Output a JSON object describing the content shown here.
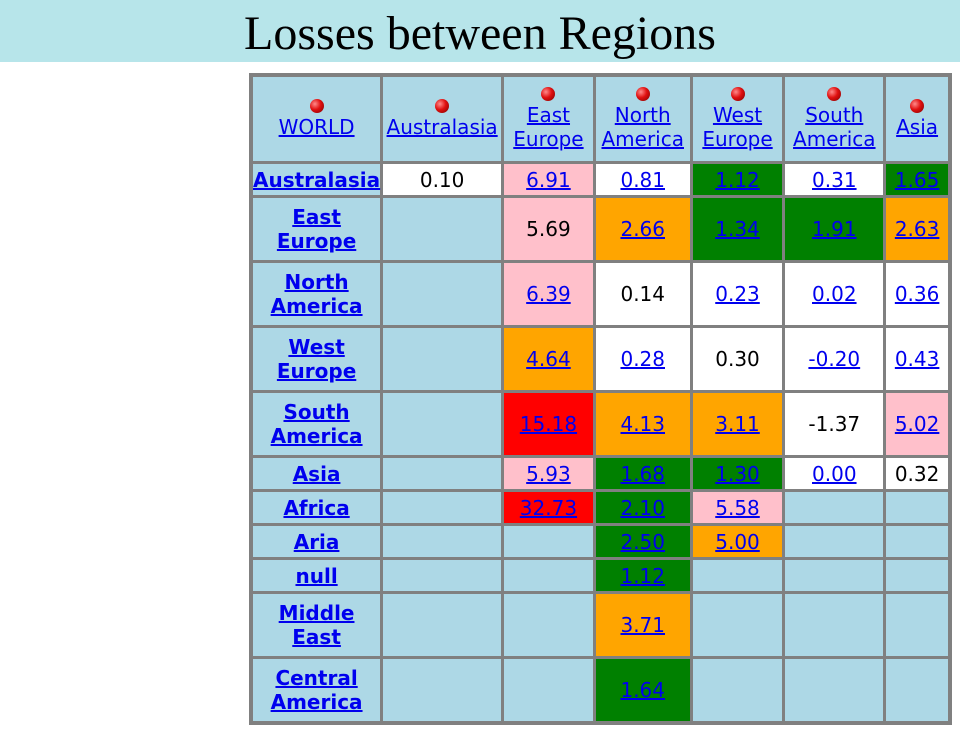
{
  "slide": {
    "title": "Losses between Regions"
  },
  "headers": [
    "WORLD",
    "Australasia",
    "East Europe",
    "North America",
    "West Europe",
    "South America",
    "Asia"
  ],
  "header_lines": [
    [
      "WORLD"
    ],
    [
      "Australasia"
    ],
    [
      "East",
      "Europe"
    ],
    [
      "North",
      "America"
    ],
    [
      "West",
      "Europe"
    ],
    [
      "South",
      "America"
    ],
    [
      "Asia"
    ]
  ],
  "rows": [
    {
      "label": [
        "Australasia"
      ],
      "cells": [
        {
          "v": "0.10",
          "c": "white",
          "link": false
        },
        {
          "v": "6.91",
          "c": "pink",
          "link": true
        },
        {
          "v": "0.81",
          "c": "white",
          "link": true
        },
        {
          "v": "1.12",
          "c": "green",
          "link": true
        },
        {
          "v": "0.31",
          "c": "white",
          "link": true
        },
        {
          "v": "1.65",
          "c": "green",
          "link": true
        }
      ]
    },
    {
      "label": [
        "East",
        "Europe"
      ],
      "cells": [
        {
          "v": "",
          "c": "",
          "link": false
        },
        {
          "v": "5.69",
          "c": "pink",
          "link": false
        },
        {
          "v": "2.66",
          "c": "orange",
          "link": true
        },
        {
          "v": "1.34",
          "c": "green",
          "link": true
        },
        {
          "v": "1.91",
          "c": "green",
          "link": true
        },
        {
          "v": "2.63",
          "c": "orange",
          "link": true
        }
      ]
    },
    {
      "label": [
        "North",
        "America"
      ],
      "cells": [
        {
          "v": "",
          "c": "",
          "link": false
        },
        {
          "v": "6.39",
          "c": "pink",
          "link": true
        },
        {
          "v": "0.14",
          "c": "white",
          "link": false
        },
        {
          "v": "0.23",
          "c": "white",
          "link": true
        },
        {
          "v": "0.02",
          "c": "white",
          "link": true
        },
        {
          "v": "0.36",
          "c": "white",
          "link": true
        }
      ]
    },
    {
      "label": [
        "West",
        "Europe"
      ],
      "cells": [
        {
          "v": "",
          "c": "",
          "link": false
        },
        {
          "v": "4.64",
          "c": "orange",
          "link": true
        },
        {
          "v": "0.28",
          "c": "white",
          "link": true
        },
        {
          "v": "0.30",
          "c": "white",
          "link": false
        },
        {
          "v": "-0.20",
          "c": "white",
          "link": true
        },
        {
          "v": "0.43",
          "c": "white",
          "link": true
        }
      ]
    },
    {
      "label": [
        "South",
        "America"
      ],
      "cells": [
        {
          "v": "",
          "c": "",
          "link": false
        },
        {
          "v": "15.18",
          "c": "red",
          "link": true
        },
        {
          "v": "4.13",
          "c": "orange",
          "link": true
        },
        {
          "v": "3.11",
          "c": "orange",
          "link": true
        },
        {
          "v": "-1.37",
          "c": "white",
          "link": false
        },
        {
          "v": "5.02",
          "c": "pink",
          "link": true
        }
      ]
    },
    {
      "label": [
        "Asia"
      ],
      "cells": [
        {
          "v": "",
          "c": "",
          "link": false
        },
        {
          "v": "5.93",
          "c": "pink",
          "link": true
        },
        {
          "v": "1.68",
          "c": "green",
          "link": true
        },
        {
          "v": "1.30",
          "c": "green",
          "link": true
        },
        {
          "v": "0.00",
          "c": "white",
          "link": true
        },
        {
          "v": "0.32",
          "c": "white",
          "link": false
        }
      ]
    },
    {
      "label": [
        "Africa"
      ],
      "cells": [
        {
          "v": "",
          "c": "",
          "link": false
        },
        {
          "v": "32.73",
          "c": "red",
          "link": true
        },
        {
          "v": "2.10",
          "c": "green",
          "link": true
        },
        {
          "v": "5.58",
          "c": "pink",
          "link": true
        },
        {
          "v": "",
          "c": "",
          "link": false
        },
        {
          "v": "",
          "c": "",
          "link": false
        }
      ]
    },
    {
      "label": [
        "Aria"
      ],
      "cells": [
        {
          "v": "",
          "c": "",
          "link": false
        },
        {
          "v": "",
          "c": "",
          "link": false
        },
        {
          "v": "2.50",
          "c": "green",
          "link": true
        },
        {
          "v": "5.00",
          "c": "orange",
          "link": true
        },
        {
          "v": "",
          "c": "",
          "link": false
        },
        {
          "v": "",
          "c": "",
          "link": false
        }
      ]
    },
    {
      "label": [
        "null"
      ],
      "cells": [
        {
          "v": "",
          "c": "",
          "link": false
        },
        {
          "v": "",
          "c": "",
          "link": false
        },
        {
          "v": "1.12",
          "c": "green",
          "link": true
        },
        {
          "v": "",
          "c": "",
          "link": false
        },
        {
          "v": "",
          "c": "",
          "link": false
        },
        {
          "v": "",
          "c": "",
          "link": false
        }
      ]
    },
    {
      "label": [
        "Middle",
        "East"
      ],
      "cells": [
        {
          "v": "",
          "c": "",
          "link": false
        },
        {
          "v": "",
          "c": "",
          "link": false
        },
        {
          "v": "3.71",
          "c": "orange",
          "link": true
        },
        {
          "v": "",
          "c": "",
          "link": false
        },
        {
          "v": "",
          "c": "",
          "link": false
        },
        {
          "v": "",
          "c": "",
          "link": false
        }
      ]
    },
    {
      "label": [
        "Central",
        "America"
      ],
      "cells": [
        {
          "v": "",
          "c": "",
          "link": false
        },
        {
          "v": "",
          "c": "",
          "link": false
        },
        {
          "v": "1.64",
          "c": "green",
          "link": true
        },
        {
          "v": "",
          "c": "",
          "link": false
        },
        {
          "v": "",
          "c": "",
          "link": false
        },
        {
          "v": "",
          "c": "",
          "link": false
        }
      ]
    }
  ],
  "colors": {
    "white": "#ffffff",
    "pink": "#ffc0cb",
    "orange": "#ffa500",
    "green": "#008000",
    "red": "#ff0000",
    "empty": "#add8e6",
    "title_band": "#b7e5ea"
  }
}
